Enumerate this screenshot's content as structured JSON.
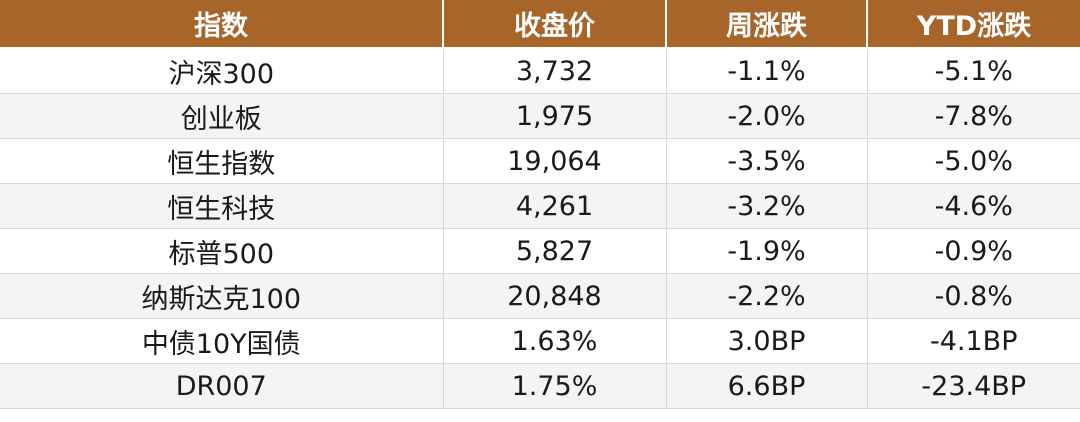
{
  "table": {
    "headers": [
      "指数",
      "收盘价",
      "周涨跌",
      "YTD涨跌"
    ],
    "rows": [
      [
        "沪深300",
        "3,732",
        "-1.1%",
        "-5.1%"
      ],
      [
        "创业板",
        "1,975",
        "-2.0%",
        "-7.8%"
      ],
      [
        "恒生指数",
        "19,064",
        "-3.5%",
        "-5.0%"
      ],
      [
        "恒生科技",
        "4,261",
        "-3.2%",
        "-4.6%"
      ],
      [
        "标普500",
        "5,827",
        "-1.9%",
        "-0.9%"
      ],
      [
        "纳斯达克100",
        "20,848",
        "-2.2%",
        "-0.8%"
      ],
      [
        "中债10Y国债",
        "1.63%",
        "3.0BP",
        "-4.1BP"
      ],
      [
        "DR007",
        "1.75%",
        "6.6BP",
        "-23.4BP"
      ]
    ]
  },
  "colors": {
    "header_bg": "#a8652a",
    "header_text": "#ffffff",
    "stripe": "#f4f4f4"
  }
}
